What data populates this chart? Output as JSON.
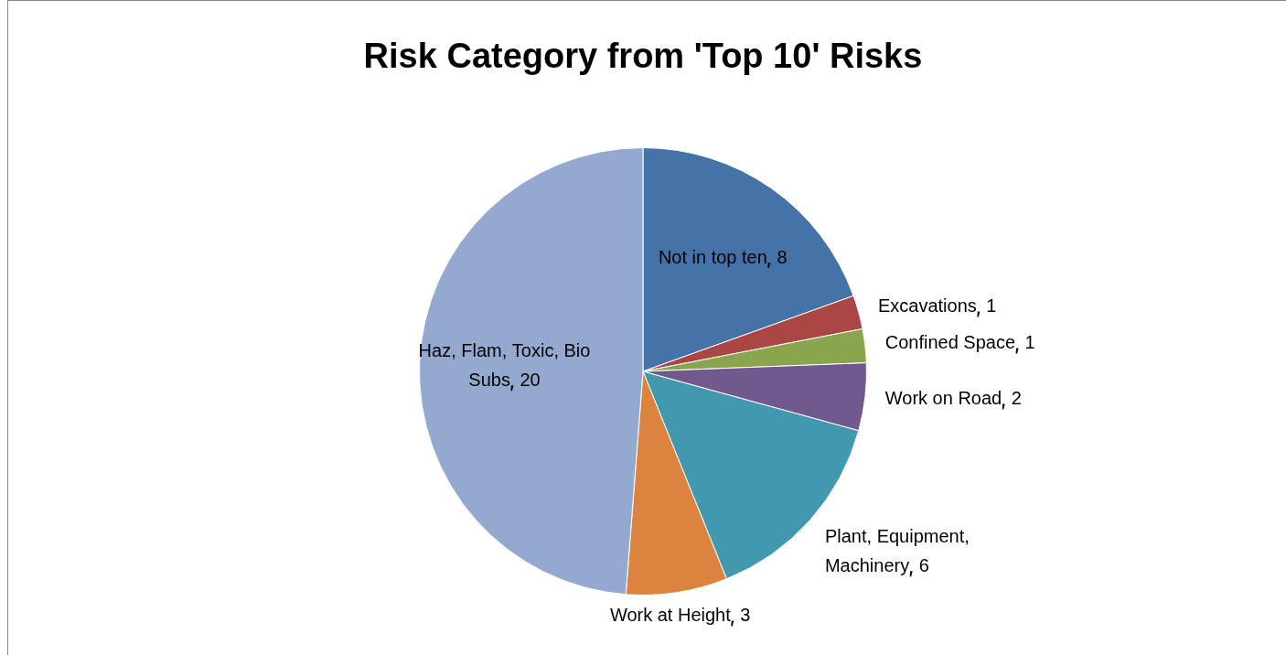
{
  "chart_data": {
    "type": "pie",
    "title": "Risk Category from 'Top 10' Risks",
    "categories": [
      "Not in top ten",
      "Excavations",
      "Confined Space",
      "Work on Road",
      "Plant, Equipment, Machinery",
      "Work at Height",
      "Haz, Flam, Toxic, Bio Subs"
    ],
    "values": [
      8,
      1,
      1,
      2,
      6,
      3,
      20
    ],
    "colors": [
      "#4572a7",
      "#aa4643",
      "#89a54e",
      "#71588f",
      "#4198af",
      "#db843d",
      "#93a9cf"
    ],
    "data_labels": true,
    "legend": false
  }
}
